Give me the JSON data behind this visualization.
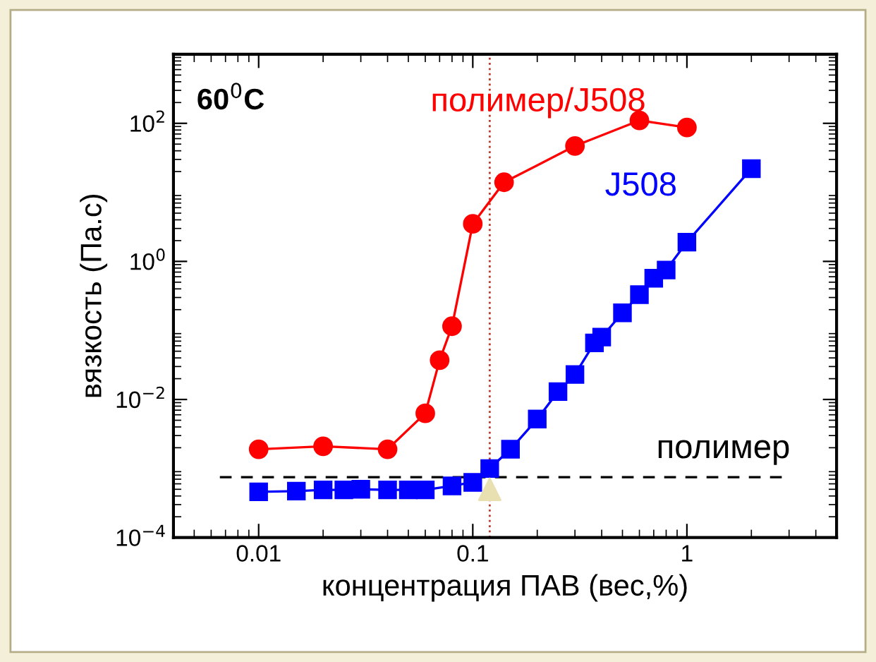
{
  "chart_data": {
    "type": "line",
    "xlabel": "концентрация ПАВ (вес,%)",
    "ylabel": "вязкость (Па.с)",
    "log": "xy",
    "grid": false,
    "legend": false,
    "xlim": [
      0.004,
      5
    ],
    "ylim": [
      0.0001,
      1000
    ],
    "xticks": [
      0.01,
      0.1,
      1
    ],
    "yticks": [
      {
        "value": 0.0001,
        "label": "10$^{−4}$"
      },
      {
        "value": 0.01,
        "label": "10$^{−2}$"
      },
      {
        "value": 1,
        "label": "10$^{0}$"
      },
      {
        "value": 100,
        "label": "10$^{2}$"
      }
    ],
    "annotations": [
      "60$^{0}$C"
    ],
    "ref_lines": [
      {
        "axis": "x",
        "value": 0.12,
        "color": "#c0392b",
        "line_style": "dotted"
      },
      {
        "axis": "y",
        "value": 0.00075,
        "label": "полимер",
        "color": "#000000",
        "line_style": "dashed"
      }
    ],
    "series": [
      {
        "name": "полимер/J508",
        "color": "#ff0000",
        "marker": "circle",
        "line_style": "solid",
        "x": [
          0.01,
          0.02,
          0.04,
          0.06,
          0.07,
          0.08,
          0.1,
          0.14,
          0.3,
          0.6,
          1
        ],
        "values": [
          0.0019,
          0.0021,
          0.0019,
          0.0063,
          0.037,
          0.115,
          3.5,
          14,
          47,
          110,
          87
        ]
      },
      {
        "name": "J508",
        "color": "#0000ff",
        "marker": "square",
        "line_style": "solid",
        "x": [
          0.01,
          0.015,
          0.02,
          0.025,
          0.03,
          0.04,
          0.05,
          0.06,
          0.08,
          0.1,
          0.12,
          0.15,
          0.2,
          0.25,
          0.3,
          0.37,
          0.4,
          0.5,
          0.6,
          0.7,
          0.8,
          1,
          2
        ],
        "values": [
          0.00046,
          0.00047,
          0.00049,
          0.00049,
          0.0005,
          0.00049,
          0.00049,
          0.00049,
          0.00056,
          0.00063,
          0.001,
          0.0019,
          0.0052,
          0.013,
          0.023,
          0.066,
          0.08,
          0.18,
          0.33,
          0.57,
          0.75,
          1.9,
          22
        ]
      },
      {
        "type": "scatter",
        "color": "#e8e0b0",
        "marker": "triangle",
        "x": [
          0.12
        ],
        "values": [
          0.0005
        ]
      }
    ]
  }
}
